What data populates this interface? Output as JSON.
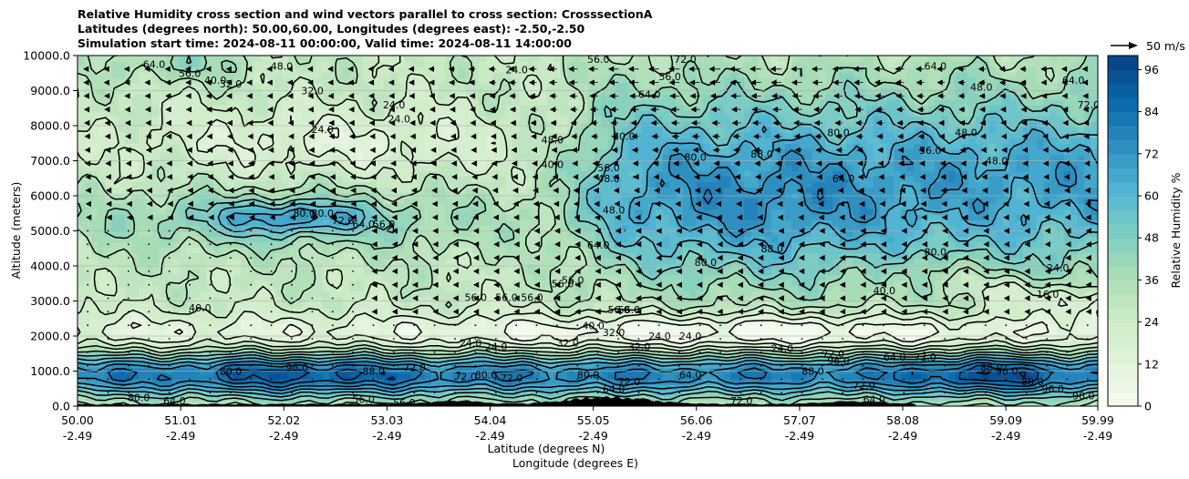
{
  "chart_data": {
    "type": "heatmap",
    "title_lines": [
      "Relative Humidity cross section and wind vectors parallel to cross section: CrosssectionA",
      "Latitudes (degrees north): 50.00,60.00, Longitudes (degrees east): -2.50,-2.50",
      "Simulation start time: 2024-08-11 00:00:00, Valid time: 2024-08-11 14:00:00"
    ],
    "xlabel_lines": [
      "Latitude (degrees N)",
      "Longitude (degrees E)"
    ],
    "ylabel": "Altitude (meters)",
    "x_ticks": [
      {
        "lat": "50.00",
        "lon": "-2.49",
        "value": 50.0
      },
      {
        "lat": "51.01",
        "lon": "-2.49",
        "value": 51.01
      },
      {
        "lat": "52.02",
        "lon": "-2.49",
        "value": 52.02
      },
      {
        "lat": "53.03",
        "lon": "-2.49",
        "value": 53.03
      },
      {
        "lat": "54.04",
        "lon": "-2.49",
        "value": 54.04
      },
      {
        "lat": "55.05",
        "lon": "-2.49",
        "value": 55.05
      },
      {
        "lat": "56.06",
        "lon": "-2.49",
        "value": 56.06
      },
      {
        "lat": "57.07",
        "lon": "-2.49",
        "value": 57.07
      },
      {
        "lat": "58.08",
        "lon": "-2.49",
        "value": 58.08
      },
      {
        "lat": "59.09",
        "lon": "-2.49",
        "value": 59.09
      },
      {
        "lat": "59.99",
        "lon": "-2.49",
        "value": 59.99
      }
    ],
    "xlim": [
      50.0,
      59.99
    ],
    "y_ticks": [
      "0.0",
      "1000.0",
      "2000.0",
      "3000.0",
      "4000.0",
      "5000.0",
      "6000.0",
      "7000.0",
      "8000.0",
      "9000.0",
      "10000.0"
    ],
    "ylim": [
      0,
      10000
    ],
    "grid": "horizontal",
    "colorbar": {
      "label": "Relative Humidity %",
      "ticks": [
        "0",
        "12",
        "24",
        "36",
        "48",
        "60",
        "72",
        "84",
        "96"
      ],
      "range": [
        0,
        100
      ],
      "colormap": [
        "#f7fcf0",
        "#e0f3db",
        "#ccebc5",
        "#a8ddb5",
        "#7bccc4",
        "#4eb3d3",
        "#2b8cbe",
        "#0868ac",
        "#084081"
      ]
    },
    "quiver_key": {
      "label": "50 m/s"
    },
    "contour_labels": [
      {
        "text": "64.0",
        "lat": 50.75,
        "alt": 9750
      },
      {
        "text": "56.0",
        "lat": 51.1,
        "alt": 9500
      },
      {
        "text": "40.0",
        "lat": 51.35,
        "alt": 9300
      },
      {
        "text": "32.0",
        "lat": 51.5,
        "alt": 9200
      },
      {
        "text": "48.0",
        "lat": 52.0,
        "alt": 9700
      },
      {
        "text": "32.0",
        "lat": 52.3,
        "alt": 9000
      },
      {
        "text": "24.0",
        "lat": 52.4,
        "alt": 7900
      },
      {
        "text": "24.0",
        "lat": 53.1,
        "alt": 8600
      },
      {
        "text": "24.0",
        "lat": 53.15,
        "alt": 8200
      },
      {
        "text": "24.0",
        "lat": 54.3,
        "alt": 9600
      },
      {
        "text": "80.0",
        "lat": 52.22,
        "alt": 5500
      },
      {
        "text": "80.0",
        "lat": 52.4,
        "alt": 5500
      },
      {
        "text": "72.0",
        "lat": 52.6,
        "alt": 5300
      },
      {
        "text": "64.0",
        "lat": 52.8,
        "alt": 5200
      },
      {
        "text": "56.0",
        "lat": 53.0,
        "alt": 5200
      },
      {
        "text": "40.0",
        "lat": 51.2,
        "alt": 2800
      },
      {
        "text": "56.0",
        "lat": 53.9,
        "alt": 3100
      },
      {
        "text": "56.0",
        "lat": 54.2,
        "alt": 3100
      },
      {
        "text": "56.0",
        "lat": 54.45,
        "alt": 3100
      },
      {
        "text": "56.0",
        "lat": 55.4,
        "alt": 2750
      },
      {
        "text": "56.0",
        "lat": 54.75,
        "alt": 3500
      },
      {
        "text": "56.0",
        "lat": 54.85,
        "alt": 3600
      },
      {
        "text": "64.0",
        "lat": 55.1,
        "alt": 4600
      },
      {
        "text": "48.0",
        "lat": 55.25,
        "alt": 5600
      },
      {
        "text": "56.0",
        "lat": 55.2,
        "alt": 6800
      },
      {
        "text": "48.0",
        "lat": 55.2,
        "alt": 6500
      },
      {
        "text": "40.0",
        "lat": 54.65,
        "alt": 6900
      },
      {
        "text": "48.0",
        "lat": 54.65,
        "alt": 7600
      },
      {
        "text": "80.0",
        "lat": 55.35,
        "alt": 7700
      },
      {
        "text": "64.0",
        "lat": 55.6,
        "alt": 8900
      },
      {
        "text": "56.0",
        "lat": 55.8,
        "alt": 9400
      },
      {
        "text": "56.0",
        "lat": 55.1,
        "alt": 9900
      },
      {
        "text": "72.0",
        "lat": 55.95,
        "alt": 9900
      },
      {
        "text": "80.0",
        "lat": 56.05,
        "alt": 7100
      },
      {
        "text": "88.0",
        "lat": 56.7,
        "alt": 7200
      },
      {
        "text": "80.0",
        "lat": 57.45,
        "alt": 7800
      },
      {
        "text": "64.0",
        "lat": 57.5,
        "alt": 6500
      },
      {
        "text": "56.0",
        "lat": 58.35,
        "alt": 7300
      },
      {
        "text": "48.0",
        "lat": 58.7,
        "alt": 7800
      },
      {
        "text": "48.0",
        "lat": 59.0,
        "alt": 7000
      },
      {
        "text": "48.0",
        "lat": 58.85,
        "alt": 9100
      },
      {
        "text": "64.0",
        "lat": 58.4,
        "alt": 9700
      },
      {
        "text": "64.0",
        "lat": 59.75,
        "alt": 9300
      },
      {
        "text": "72.0",
        "lat": 59.9,
        "alt": 8600
      },
      {
        "text": "88.0",
        "lat": 56.8,
        "alt": 4500
      },
      {
        "text": "80.0",
        "lat": 56.15,
        "alt": 4100
      },
      {
        "text": "80.0",
        "lat": 58.4,
        "alt": 4400
      },
      {
        "text": "40.0",
        "lat": 57.9,
        "alt": 3300
      },
      {
        "text": "24.0",
        "lat": 59.6,
        "alt": 3950
      },
      {
        "text": "16.0",
        "lat": 59.5,
        "alt": 3200
      },
      {
        "text": "56.0",
        "lat": 55.3,
        "alt": 2750
      },
      {
        "text": "40.0",
        "lat": 55.05,
        "alt": 2300
      },
      {
        "text": "32.0",
        "lat": 55.25,
        "alt": 2100
      },
      {
        "text": "32.0",
        "lat": 55.5,
        "alt": 1700
      },
      {
        "text": "24.0",
        "lat": 56.0,
        "alt": 2000
      },
      {
        "text": "24.0",
        "lat": 55.7,
        "alt": 2000
      },
      {
        "text": "24.0",
        "lat": 56.9,
        "alt": 1650
      },
      {
        "text": "24.0",
        "lat": 54.1,
        "alt": 1700
      },
      {
        "text": "24.0",
        "lat": 53.85,
        "alt": 1800
      },
      {
        "text": "32.0",
        "lat": 54.8,
        "alt": 1800
      },
      {
        "text": "72.0",
        "lat": 53.3,
        "alt": 1100
      },
      {
        "text": "80.0",
        "lat": 54.0,
        "alt": 900
      },
      {
        "text": "72.0",
        "lat": 54.25,
        "alt": 800
      },
      {
        "text": "72.0",
        "lat": 53.8,
        "alt": 850
      },
      {
        "text": "80.0",
        "lat": 55.0,
        "alt": 900
      },
      {
        "text": "64.0",
        "lat": 56.0,
        "alt": 900
      },
      {
        "text": "72.0",
        "lat": 55.4,
        "alt": 700
      },
      {
        "text": "88.0",
        "lat": 52.9,
        "alt": 1000
      },
      {
        "text": "96.0",
        "lat": 52.15,
        "alt": 1100
      },
      {
        "text": "56.0",
        "lat": 52.8,
        "alt": 200
      },
      {
        "text": "56.0",
        "lat": 53.2,
        "alt": 100
      },
      {
        "text": "80.0",
        "lat": 50.6,
        "alt": 250
      },
      {
        "text": "64.0",
        "lat": 50.95,
        "alt": 150
      },
      {
        "text": "80.0",
        "lat": 51.5,
        "alt": 1000
      },
      {
        "text": "88.0",
        "lat": 57.2,
        "alt": 1000
      },
      {
        "text": "96.0",
        "lat": 57.45,
        "alt": 1300
      },
      {
        "text": "72.0",
        "lat": 57.7,
        "alt": 600
      },
      {
        "text": "64.0",
        "lat": 57.8,
        "alt": 200
      },
      {
        "text": "72.0",
        "lat": 57.4,
        "alt": 1500
      },
      {
        "text": "64.0",
        "lat": 58.0,
        "alt": 1400
      },
      {
        "text": "72.0",
        "lat": 58.3,
        "alt": 1400
      },
      {
        "text": "88.0",
        "lat": 58.95,
        "alt": 1100
      },
      {
        "text": "96.0",
        "lat": 59.1,
        "alt": 1000
      },
      {
        "text": "96.0",
        "lat": 59.55,
        "alt": 500
      },
      {
        "text": "96.0",
        "lat": 59.85,
        "alt": 300
      },
      {
        "text": "88.0",
        "lat": 59.35,
        "alt": 700
      },
      {
        "text": "72.0",
        "lat": 56.5,
        "alt": 150
      },
      {
        "text": "64.0",
        "lat": 55.25,
        "alt": 500
      }
    ]
  }
}
